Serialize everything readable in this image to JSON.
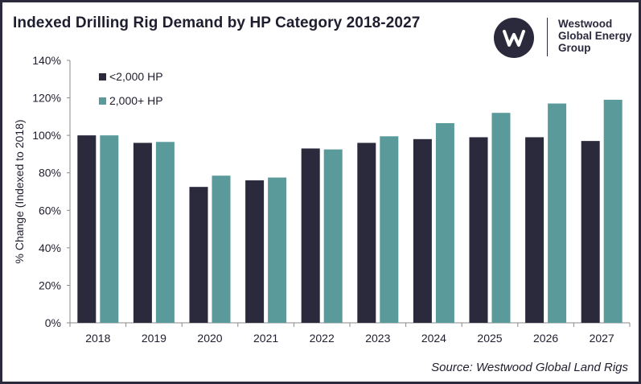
{
  "header": {
    "title": "Indexed Drilling Rig Demand by HP Category 2018-2027"
  },
  "logo": {
    "icon": "westwood-w-icon",
    "lines": [
      "Westwood",
      "Global Energy",
      "Group"
    ]
  },
  "source": "Source: Westwood Global Land Rigs",
  "chart_data": {
    "type": "bar",
    "title": "Indexed Drilling Rig Demand by HP Category 2018-2027",
    "xlabel": "",
    "ylabel": "% Change (Indexed to 2018)",
    "ylim": [
      0,
      140
    ],
    "yticks": [
      "0%",
      "20%",
      "40%",
      "60%",
      "80%",
      "100%",
      "120%",
      "140%"
    ],
    "grid": false,
    "legend_position": "top-left",
    "categories": [
      "2018",
      "2019",
      "2020",
      "2021",
      "2022",
      "2023",
      "2024",
      "2025",
      "2026",
      "2027"
    ],
    "series": [
      {
        "name": "<2,000 HP",
        "color": "#2b2a3d",
        "values": [
          100,
          96,
          72.5,
          76,
          93,
          96,
          98,
          99,
          99,
          97
        ]
      },
      {
        "name": "2,000+ HP",
        "color": "#5a9a9a",
        "values": [
          100,
          96.5,
          78.5,
          77.5,
          92.5,
          99.5,
          106.5,
          112,
          117,
          119
        ]
      }
    ]
  }
}
